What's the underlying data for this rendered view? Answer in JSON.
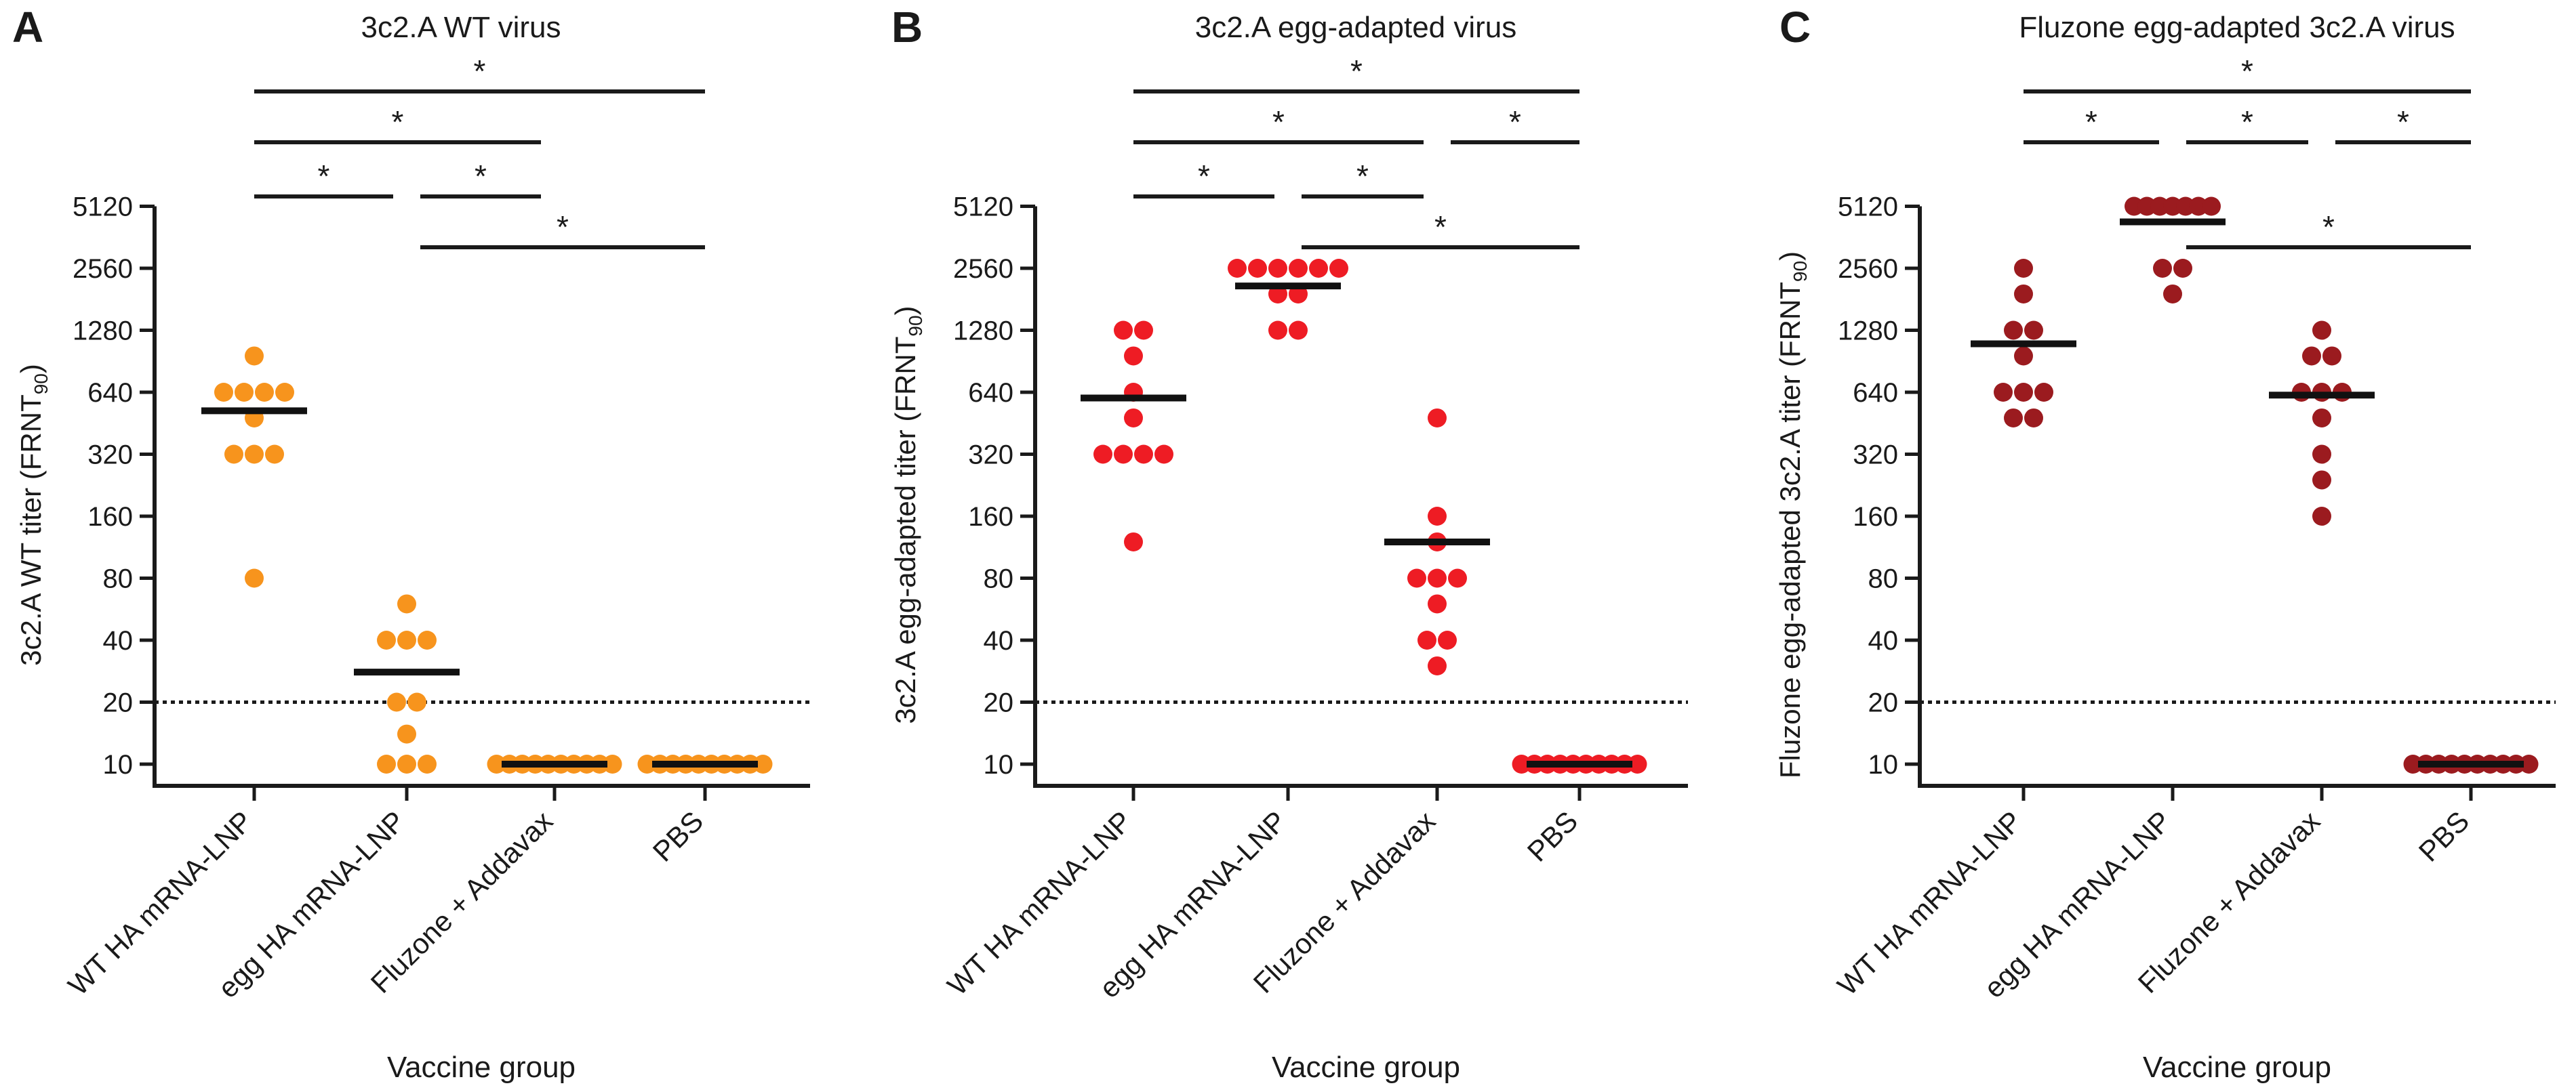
{
  "chart_data": [
    {
      "type": "scatter",
      "panel": "A",
      "title": "3c2.A WT virus",
      "ylabel": "3c2.A WT titer (FRNT",
      "ylabel_sub": "90",
      "ylabel_close": ")",
      "xlabel": "Vaccine group",
      "yscale": "log2",
      "ylim": [
        8.2,
        6500
      ],
      "yticks": [
        10,
        20,
        40,
        80,
        160,
        320,
        640,
        1280,
        2560,
        5120
      ],
      "limit_of_detection": 20,
      "color": "#F7941D",
      "categories": [
        "WT HA mRNA-LNP",
        "egg HA mRNA-LNP",
        "Fluzone + Addavax",
        "PBS"
      ],
      "groups": [
        {
          "name": "WT HA mRNA-LNP",
          "mean": 520,
          "points": [
            960,
            640,
            640,
            640,
            640,
            480,
            320,
            320,
            320,
            80
          ]
        },
        {
          "name": "egg HA mRNA-LNP",
          "mean": 28,
          "points": [
            60,
            40,
            40,
            40,
            20,
            20,
            10,
            10,
            10,
            14
          ]
        },
        {
          "name": "Fluzone + Addavax",
          "mean": 10,
          "points": [
            10,
            10,
            10,
            10,
            10,
            10,
            10,
            10,
            10,
            10
          ]
        },
        {
          "name": "PBS",
          "mean": 10,
          "points": [
            10,
            10,
            10,
            10,
            10,
            10,
            10,
            10,
            10,
            10
          ]
        }
      ],
      "significance": [
        {
          "from": 0,
          "to": 3,
          "label": "*"
        },
        {
          "from": 0,
          "to": 2,
          "label": "*"
        },
        {
          "from": 0,
          "to": 1,
          "label": "*"
        },
        {
          "from": 1,
          "to": 2,
          "label": "*"
        },
        {
          "from": 1,
          "to": 3,
          "label": "*"
        }
      ]
    },
    {
      "type": "scatter",
      "panel": "B",
      "title": "3c2.A egg-adapted virus",
      "ylabel": "3c2.A egg-adapted titer (FRNT",
      "ylabel_sub": "90",
      "ylabel_close": ")",
      "xlabel": "Vaccine group",
      "yscale": "log2",
      "ylim": [
        8.2,
        6500
      ],
      "yticks": [
        10,
        20,
        40,
        80,
        160,
        320,
        640,
        1280,
        2560,
        5120
      ],
      "limit_of_detection": 20,
      "color": "#EE1C24",
      "categories": [
        "WT HA mRNA-LNP",
        "egg HA mRNA-LNP",
        "Fluzone + Addavax",
        "PBS"
      ],
      "groups": [
        {
          "name": "WT HA mRNA-LNP",
          "mean": 600,
          "points": [
            1280,
            1280,
            960,
            640,
            480,
            320,
            320,
            320,
            320,
            120
          ]
        },
        {
          "name": "egg HA mRNA-LNP",
          "mean": 2100,
          "points": [
            2560,
            2560,
            2560,
            2560,
            2560,
            2560,
            1920,
            1920,
            1280,
            1280
          ]
        },
        {
          "name": "Fluzone + Addavax",
          "mean": 120,
          "points": [
            480,
            160,
            120,
            80,
            80,
            80,
            60,
            40,
            40,
            30
          ]
        },
        {
          "name": "PBS",
          "mean": 10,
          "points": [
            10,
            10,
            10,
            10,
            10,
            10,
            10,
            10,
            10,
            10
          ]
        }
      ],
      "significance": [
        {
          "from": 0,
          "to": 3,
          "label": "*"
        },
        {
          "from": 0,
          "to": 2,
          "label": "*"
        },
        {
          "from": 0,
          "to": 1,
          "label": "*"
        },
        {
          "from": 1,
          "to": 2,
          "label": "*"
        },
        {
          "from": 2,
          "to": 3,
          "label": "*"
        },
        {
          "from": 1,
          "to": 3,
          "label": "*"
        }
      ]
    },
    {
      "type": "scatter",
      "panel": "C",
      "title": "Fluzone egg-adapted 3c2.A virus",
      "ylabel": "Fluzone egg-adapted 3c2.A titer (FRNT",
      "ylabel_sub": "90",
      "ylabel_close": ")",
      "xlabel": "Vaccine group",
      "yscale": "log2",
      "ylim": [
        8.2,
        6500
      ],
      "yticks": [
        10,
        20,
        40,
        80,
        160,
        320,
        640,
        1280,
        2560,
        5120
      ],
      "limit_of_detection": 20,
      "color": "#9B1B1F",
      "categories": [
        "WT HA mRNA-LNP",
        "egg HA mRNA-LNP",
        "Fluzone + Addavax",
        "PBS"
      ],
      "groups": [
        {
          "name": "WT HA mRNA-LNP",
          "mean": 1100,
          "points": [
            2560,
            1920,
            1280,
            1280,
            960,
            640,
            640,
            640,
            480,
            480
          ]
        },
        {
          "name": "egg HA mRNA-LNP",
          "mean": 4300,
          "points": [
            5120,
            5120,
            5120,
            5120,
            5120,
            5120,
            5120,
            2560,
            2560,
            1920
          ]
        },
        {
          "name": "Fluzone + Addavax",
          "mean": 620,
          "points": [
            1280,
            960,
            960,
            640,
            640,
            640,
            480,
            320,
            240,
            160
          ]
        },
        {
          "name": "PBS",
          "mean": 10,
          "points": [
            10,
            10,
            10,
            10,
            10,
            10,
            10,
            10,
            10,
            10
          ]
        }
      ],
      "significance": [
        {
          "from": 0,
          "to": 3,
          "label": "*"
        },
        {
          "from": 0,
          "to": 1,
          "label": "*"
        },
        {
          "from": 1,
          "to": 2,
          "label": "*"
        },
        {
          "from": 2,
          "to": 3,
          "label": "*"
        },
        {
          "from": 1,
          "to": 3,
          "label": "*"
        }
      ]
    }
  ]
}
